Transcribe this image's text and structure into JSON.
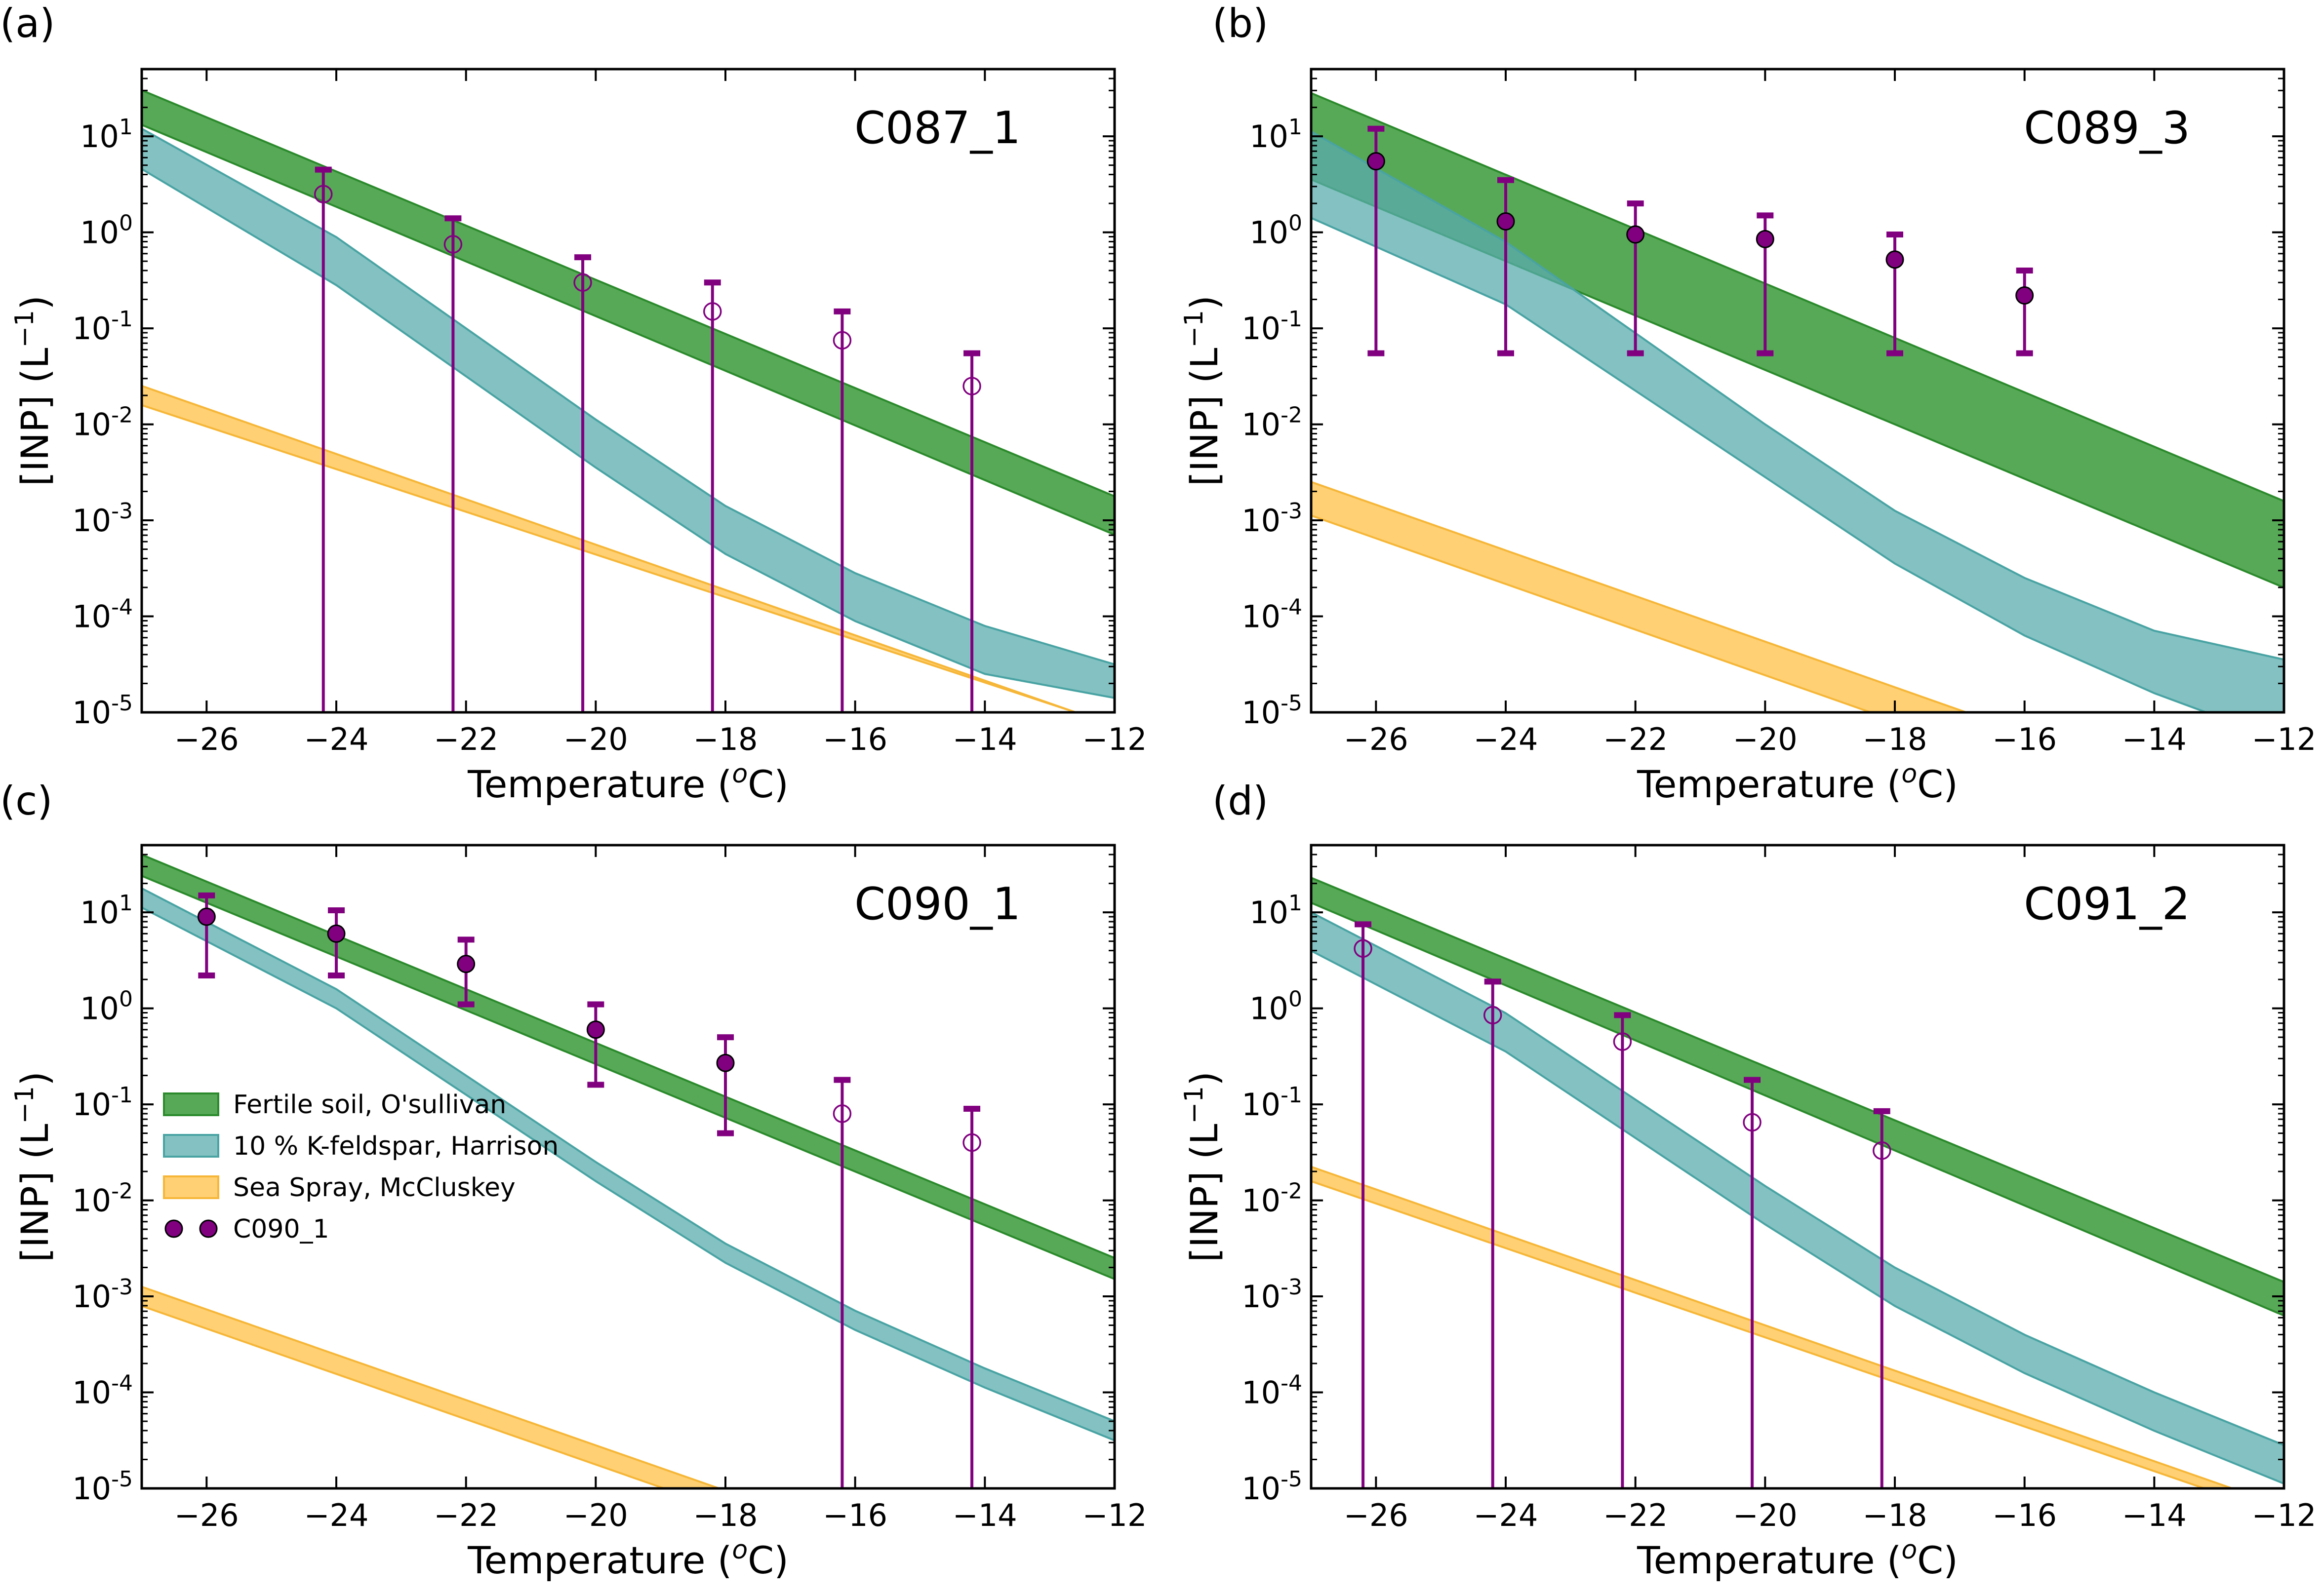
{
  "figure": {
    "legend": {
      "location": "center-left of panel (c)",
      "entries": [
        {
          "label": "Fertile soil, O'sullivan",
          "color": "#3a9a3a",
          "kind": "band"
        },
        {
          "label": "10 % K-feldspar, Harrison",
          "color": "#5aacad",
          "kind": "band"
        },
        {
          "label": "Sea Spray, McCluskey",
          "color": "#ffc451",
          "kind": "band"
        },
        {
          "label": "C090_1",
          "color": "#800080",
          "kind": "marker"
        }
      ]
    },
    "colors": {
      "soil_fill": "#3a9a3a",
      "soil_edge": "#2b8a2b",
      "feldspar_fill": "#5aacad",
      "feldspar_edge": "#4aa3a3",
      "seaspray_fill": "#ffc451",
      "seaspray_edge": "#f6b739",
      "marker": "#800080"
    }
  },
  "chart_data": [
    {
      "panel_label": "(a)",
      "type": "line",
      "title": "C087_1",
      "xlabel": "Temperature",
      "ylabel": "[INP] (L",
      "xlim": [
        -27,
        -12
      ],
      "ylim_log10": [
        -5,
        1.7
      ],
      "y_scale": "log",
      "xticks": [
        -26,
        -24,
        -22,
        -20,
        -18,
        -16,
        -14,
        -12
      ],
      "yticks_exp": [
        -5,
        -4,
        -3,
        -2,
        -1,
        0,
        1
      ],
      "grid": false,
      "bands": [
        {
          "name": "Fertile soil, O'sullivan",
          "x": [
            -27,
            -12
          ],
          "upper_log10": [
            1.48,
            -2.75
          ],
          "lower_log10": [
            1.12,
            -3.15
          ]
        },
        {
          "name": "10 % K-feldspar, Harrison",
          "x": [
            -27,
            -24,
            -22,
            -20,
            -18,
            -16,
            -14,
            -12
          ],
          "upper_log10": [
            1.08,
            -0.05,
            -1.0,
            -1.95,
            -2.85,
            -3.55,
            -4.1,
            -4.5
          ],
          "lower_log10": [
            0.66,
            -0.55,
            -1.5,
            -2.45,
            -3.35,
            -4.05,
            -4.6,
            -4.85
          ]
        },
        {
          "name": "Sea Spray, McCluskey",
          "x": [
            -27,
            -12.6
          ],
          "upper_log10": [
            -1.6,
            -5.0
          ],
          "lower_log10": [
            -1.8,
            -5.0
          ]
        }
      ],
      "points": [
        {
          "x": -24.2,
          "y": 2.5,
          "y_err_low": 1e-05,
          "y_err_high": 4.5,
          "filled": false
        },
        {
          "x": -22.2,
          "y": 0.75,
          "y_err_low": 1e-05,
          "y_err_high": 1.4,
          "filled": false
        },
        {
          "x": -20.2,
          "y": 0.3,
          "y_err_low": 1e-05,
          "y_err_high": 0.55,
          "filled": false
        },
        {
          "x": -18.2,
          "y": 0.15,
          "y_err_low": 1e-05,
          "y_err_high": 0.3,
          "filled": false
        },
        {
          "x": -16.2,
          "y": 0.075,
          "y_err_low": 1e-05,
          "y_err_high": 0.15,
          "filled": false
        },
        {
          "x": -14.2,
          "y": 0.025,
          "y_err_low": 1e-05,
          "y_err_high": 0.055,
          "filled": false
        }
      ]
    },
    {
      "panel_label": "(b)",
      "type": "line",
      "title": "C089_3",
      "xlabel": "Temperature",
      "ylabel": "[INP] (L",
      "xlim": [
        -27,
        -12
      ],
      "ylim_log10": [
        -5,
        1.7
      ],
      "y_scale": "log",
      "xticks": [
        -26,
        -24,
        -22,
        -20,
        -18,
        -16,
        -14,
        -12
      ],
      "yticks_exp": [
        -5,
        -4,
        -3,
        -2,
        -1,
        0,
        1
      ],
      "grid": false,
      "bands": [
        {
          "name": "Fertile soil, O'sullivan",
          "x": [
            -27,
            -12
          ],
          "upper_log10": [
            1.45,
            -2.8
          ],
          "lower_log10": [
            0.55,
            -3.7
          ]
        },
        {
          "name": "10 % K-feldspar, Harrison",
          "x": [
            -27,
            -24,
            -22,
            -20,
            -18,
            -16,
            -14,
            -12
          ],
          "upper_log10": [
            1.05,
            -0.1,
            -1.05,
            -2.0,
            -2.9,
            -3.6,
            -4.15,
            -4.45
          ],
          "lower_log10": [
            0.15,
            -0.75,
            -1.65,
            -2.55,
            -3.45,
            -4.2,
            -4.8,
            -5.3
          ]
        },
        {
          "name": "Sea Spray, McCluskey",
          "x": [
            -27,
            -16.9
          ],
          "upper_log10": [
            -2.6,
            -5.0
          ],
          "lower_log10": [
            -2.95,
            -5.35
          ]
        }
      ],
      "points": [
        {
          "x": -26,
          "y": 5.5,
          "y_err_low": 0.055,
          "y_err_high": 12,
          "filled": true
        },
        {
          "x": -24,
          "y": 1.3,
          "y_err_low": 0.055,
          "y_err_high": 3.5,
          "filled": true
        },
        {
          "x": -22,
          "y": 0.95,
          "y_err_low": 0.055,
          "y_err_high": 2.0,
          "filled": true
        },
        {
          "x": -20,
          "y": 0.85,
          "y_err_low": 0.055,
          "y_err_high": 1.5,
          "filled": true
        },
        {
          "x": -18,
          "y": 0.52,
          "y_err_low": 0.055,
          "y_err_high": 0.95,
          "filled": true
        },
        {
          "x": -16,
          "y": 0.22,
          "y_err_low": 0.055,
          "y_err_high": 0.4,
          "filled": true
        }
      ]
    },
    {
      "panel_label": "(c)",
      "type": "line",
      "title": "C090_1",
      "xlabel": "Temperature",
      "ylabel": "[INP] (L",
      "xlim": [
        -27,
        -12
      ],
      "ylim_log10": [
        -5,
        1.7
      ],
      "y_scale": "log",
      "xticks": [
        -26,
        -24,
        -22,
        -20,
        -18,
        -16,
        -14,
        -12
      ],
      "yticks_exp": [
        -5,
        -4,
        -3,
        -2,
        -1,
        0,
        1
      ],
      "grid": false,
      "bands": [
        {
          "name": "Fertile soil, O'sullivan",
          "x": [
            -27,
            -12
          ],
          "upper_log10": [
            1.6,
            -2.6
          ],
          "lower_log10": [
            1.38,
            -2.82
          ]
        },
        {
          "name": "10 % K-feldspar, Harrison",
          "x": [
            -27,
            -24,
            -22,
            -20,
            -18,
            -16,
            -14,
            -12
          ],
          "upper_log10": [
            1.25,
            0.2,
            -0.7,
            -1.6,
            -2.45,
            -3.15,
            -3.75,
            -4.3
          ],
          "lower_log10": [
            1.05,
            0.0,
            -0.9,
            -1.8,
            -2.65,
            -3.35,
            -3.95,
            -4.5
          ]
        },
        {
          "name": "Sea Spray, McCluskey",
          "x": [
            -27,
            -18.1
          ],
          "upper_log10": [
            -2.9,
            -5.0
          ],
          "lower_log10": [
            -3.1,
            -5.2
          ]
        }
      ],
      "points": [
        {
          "x": -26,
          "y": 9,
          "y_err_low": 2.2,
          "y_err_high": 15,
          "filled": true
        },
        {
          "x": -24,
          "y": 6,
          "y_err_low": 2.2,
          "y_err_high": 10.5,
          "filled": true
        },
        {
          "x": -22,
          "y": 2.9,
          "y_err_low": 1.1,
          "y_err_high": 5.2,
          "filled": true
        },
        {
          "x": -20,
          "y": 0.6,
          "y_err_low": 0.16,
          "y_err_high": 1.1,
          "filled": true
        },
        {
          "x": -18,
          "y": 0.27,
          "y_err_low": 0.05,
          "y_err_high": 0.5,
          "filled": true
        },
        {
          "x": -16.2,
          "y": 0.08,
          "y_err_low": 1e-05,
          "y_err_high": 0.18,
          "filled": false
        },
        {
          "x": -14.2,
          "y": 0.04,
          "y_err_low": 1e-05,
          "y_err_high": 0.09,
          "filled": false
        }
      ]
    },
    {
      "panel_label": "(d)",
      "type": "line",
      "title": "C091_2",
      "xlabel": "Temperature",
      "ylabel": "[INP] (L",
      "xlim": [
        -27,
        -12
      ],
      "ylim_log10": [
        -5,
        1.7
      ],
      "y_scale": "log",
      "xticks": [
        -26,
        -24,
        -22,
        -20,
        -18,
        -16,
        -14,
        -12
      ],
      "yticks_exp": [
        -5,
        -4,
        -3,
        -2,
        -1,
        0,
        1
      ],
      "grid": false,
      "bands": [
        {
          "name": "Fertile soil, O'sullivan",
          "x": [
            -27,
            -12
          ],
          "upper_log10": [
            1.36,
            -2.85
          ],
          "lower_log10": [
            1.1,
            -3.2
          ]
        },
        {
          "name": "10 % K-feldspar, Harrison",
          "x": [
            -27,
            -24,
            -22,
            -20,
            -18,
            -16,
            -14,
            -12
          ],
          "upper_log10": [
            1.0,
            -0.05,
            -0.95,
            -1.85,
            -2.7,
            -3.4,
            -4.0,
            -4.55
          ],
          "lower_log10": [
            0.6,
            -0.45,
            -1.35,
            -2.25,
            -3.1,
            -3.8,
            -4.4,
            -4.95
          ]
        },
        {
          "name": "Sea Spray, McCluskey",
          "x": [
            -27,
            -12.8
          ],
          "upper_log10": [
            -1.65,
            -5.0
          ],
          "lower_log10": [
            -1.8,
            -5.1
          ]
        }
      ],
      "points": [
        {
          "x": -26.2,
          "y": 4.2,
          "y_err_low": 1e-05,
          "y_err_high": 7.5,
          "filled": false
        },
        {
          "x": -24.2,
          "y": 0.85,
          "y_err_low": 1e-05,
          "y_err_high": 1.9,
          "filled": false
        },
        {
          "x": -22.2,
          "y": 0.45,
          "y_err_low": 1e-05,
          "y_err_high": 0.85,
          "filled": false
        },
        {
          "x": -20.2,
          "y": 0.065,
          "y_err_low": 1e-05,
          "y_err_high": 0.18,
          "filled": false
        },
        {
          "x": -18.2,
          "y": 0.033,
          "y_err_low": 1e-05,
          "y_err_high": 0.085,
          "filled": false
        }
      ]
    }
  ]
}
